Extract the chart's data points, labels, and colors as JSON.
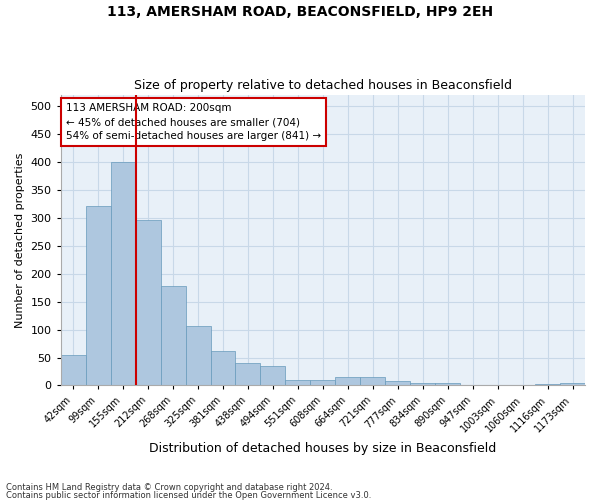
{
  "title1": "113, AMERSHAM ROAD, BEACONSFIELD, HP9 2EH",
  "title2": "Size of property relative to detached houses in Beaconsfield",
  "xlabel": "Distribution of detached houses by size in Beaconsfield",
  "ylabel": "Number of detached properties",
  "categories": [
    "42sqm",
    "99sqm",
    "155sqm",
    "212sqm",
    "268sqm",
    "325sqm",
    "381sqm",
    "438sqm",
    "494sqm",
    "551sqm",
    "608sqm",
    "664sqm",
    "721sqm",
    "777sqm",
    "834sqm",
    "890sqm",
    "947sqm",
    "1003sqm",
    "1060sqm",
    "1116sqm",
    "1173sqm"
  ],
  "values": [
    55,
    320,
    400,
    295,
    178,
    107,
    62,
    40,
    35,
    10,
    10,
    15,
    15,
    8,
    5,
    4,
    1,
    1,
    1,
    2,
    4
  ],
  "bar_color": "#aec7df",
  "bar_edge_color": "#6699bb",
  "grid_color": "#c8d8e8",
  "background_color": "#e8f0f8",
  "vline_x": 2.5,
  "vline_color": "#cc0000",
  "annotation_text": "113 AMERSHAM ROAD: 200sqm\n← 45% of detached houses are smaller (704)\n54% of semi-detached houses are larger (841) →",
  "annotation_box_color": "#ffffff",
  "annotation_box_edge": "#cc0000",
  "ylim": [
    0,
    520
  ],
  "yticks": [
    0,
    50,
    100,
    150,
    200,
    250,
    300,
    350,
    400,
    450,
    500
  ],
  "footer1": "Contains HM Land Registry data © Crown copyright and database right 2024.",
  "footer2": "Contains public sector information licensed under the Open Government Licence v3.0."
}
